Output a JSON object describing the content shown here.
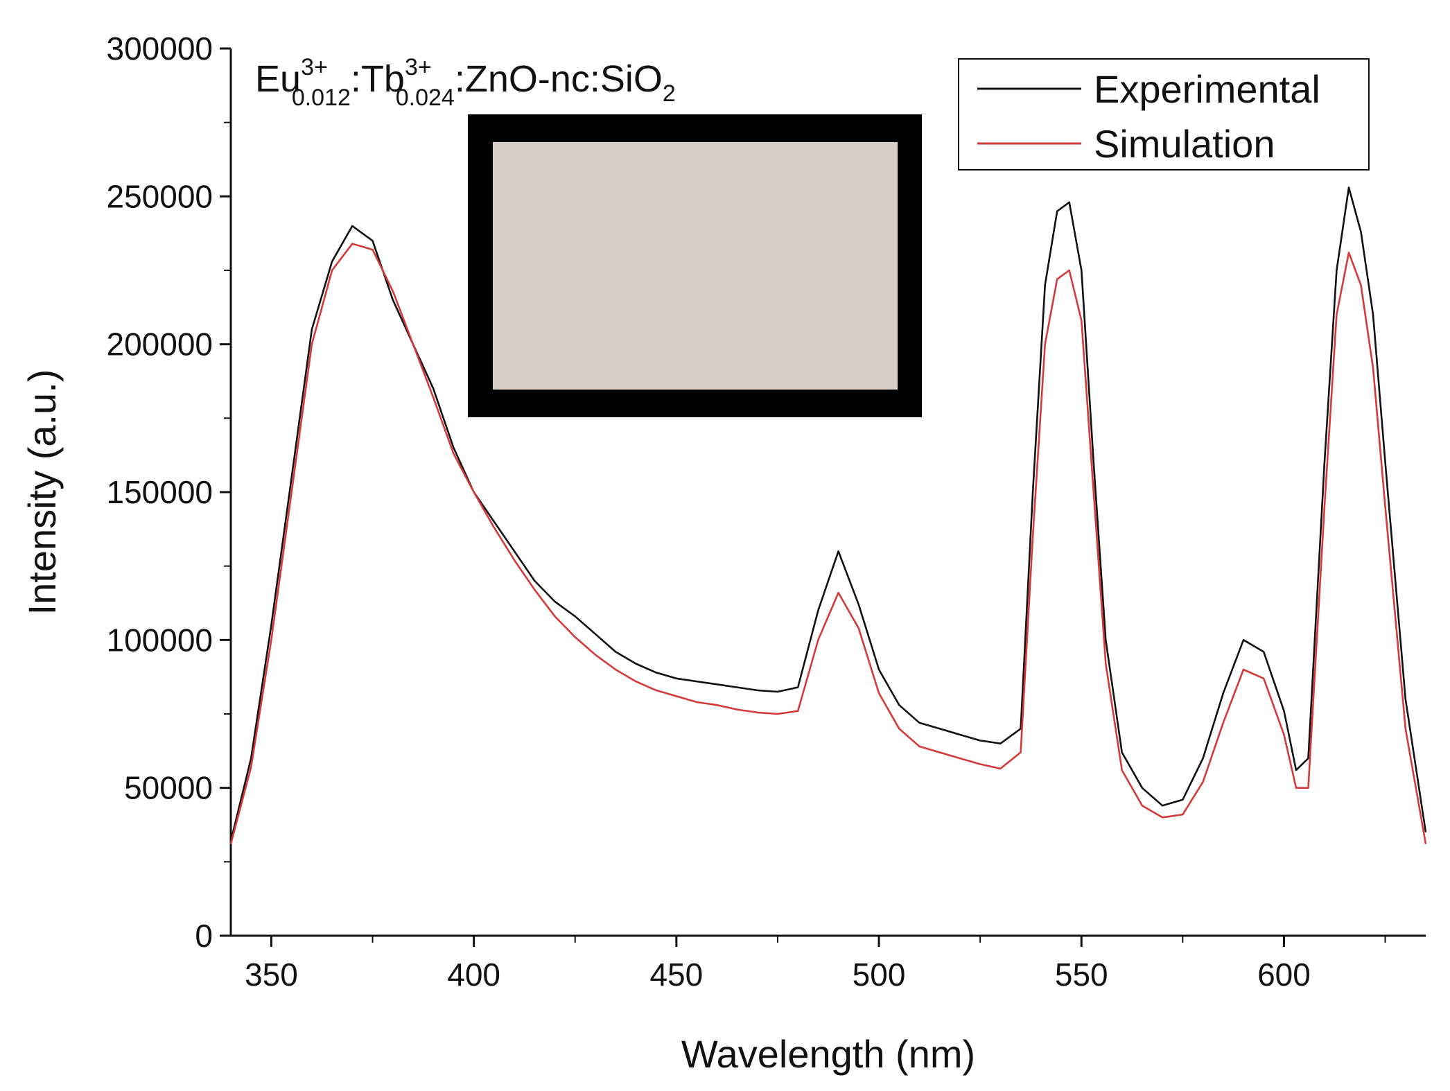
{
  "chart_data": {
    "type": "line",
    "title": "",
    "sample_label": {
      "base1": "Eu",
      "sup1": "3+",
      "sub1": "0.012",
      "sep1": ":",
      "base2": "Tb",
      "sup2": "3+",
      "sub2": "0.024",
      "rest": ":ZnO-nc:SiO",
      "sub3": "2"
    },
    "xlabel": "Wavelength (nm)",
    "ylabel": "Intensity (a.u.)",
    "xlim": [
      340,
      635
    ],
    "ylim": [
      0,
      300000
    ],
    "xticks": [
      350,
      400,
      450,
      500,
      550,
      600
    ],
    "xtick_labels": [
      "350",
      "400",
      "450",
      "500",
      "550",
      "600"
    ],
    "yticks": [
      0,
      50000,
      100000,
      150000,
      200000,
      250000,
      300000
    ],
    "ytick_labels": [
      "0",
      "50000",
      "100000",
      "150000",
      "200000",
      "250000",
      "300000"
    ],
    "legend": {
      "position": "top-right"
    },
    "inset": "photograph of sample film (beige rectangle with black frame)",
    "series": [
      {
        "name": "Experimental",
        "color": "#111111",
        "x": [
          340,
          345,
          350,
          355,
          360,
          365,
          370,
          375,
          380,
          385,
          390,
          395,
          400,
          405,
          410,
          415,
          420,
          425,
          430,
          435,
          440,
          445,
          450,
          455,
          460,
          465,
          470,
          475,
          480,
          485,
          490,
          495,
          500,
          505,
          510,
          515,
          520,
          525,
          530,
          535,
          538,
          541,
          544,
          547,
          550,
          553,
          556,
          560,
          565,
          570,
          575,
          580,
          585,
          590,
          595,
          600,
          603,
          606,
          610,
          613,
          616,
          619,
          622,
          625,
          630,
          635
        ],
        "y": [
          32000,
          60000,
          105000,
          155000,
          205000,
          228000,
          240000,
          235000,
          215000,
          200000,
          185000,
          165000,
          150000,
          140000,
          130000,
          120000,
          113000,
          108000,
          102000,
          96000,
          92000,
          89000,
          87000,
          86000,
          85000,
          84000,
          83000,
          82500,
          84000,
          110000,
          130000,
          112000,
          90000,
          78000,
          72000,
          70000,
          68000,
          66000,
          65000,
          70000,
          150000,
          220000,
          245000,
          248000,
          225000,
          160000,
          100000,
          62000,
          50000,
          44000,
          46000,
          60000,
          82000,
          100000,
          96000,
          76000,
          56000,
          60000,
          160000,
          225000,
          253000,
          238000,
          210000,
          160000,
          80000,
          35000
        ]
      },
      {
        "name": "Simulation",
        "color": "#d43a3a",
        "x": [
          340,
          345,
          350,
          355,
          360,
          365,
          370,
          375,
          380,
          385,
          390,
          395,
          400,
          405,
          410,
          415,
          420,
          425,
          430,
          435,
          440,
          445,
          450,
          455,
          460,
          465,
          470,
          475,
          480,
          485,
          490,
          495,
          500,
          505,
          510,
          515,
          520,
          525,
          530,
          535,
          538,
          541,
          544,
          547,
          550,
          553,
          556,
          560,
          565,
          570,
          575,
          580,
          585,
          590,
          595,
          600,
          603,
          606,
          610,
          613,
          616,
          619,
          622,
          625,
          630,
          635
        ],
        "y": [
          31000,
          57000,
          100000,
          150000,
          200000,
          225000,
          234000,
          232000,
          218000,
          200000,
          182000,
          163000,
          150000,
          138000,
          127000,
          117000,
          108000,
          101000,
          95000,
          90000,
          86000,
          83000,
          81000,
          79000,
          78000,
          76500,
          75500,
          75000,
          76000,
          100000,
          116000,
          104000,
          82000,
          70000,
          64000,
          62000,
          60000,
          58000,
          56500,
          62000,
          135000,
          200000,
          222000,
          225000,
          208000,
          150000,
          92000,
          56000,
          44000,
          40000,
          41000,
          52000,
          72000,
          90000,
          87000,
          68000,
          50000,
          50000,
          145000,
          210000,
          231000,
          220000,
          192000,
          145000,
          70000,
          31000
        ]
      }
    ]
  }
}
